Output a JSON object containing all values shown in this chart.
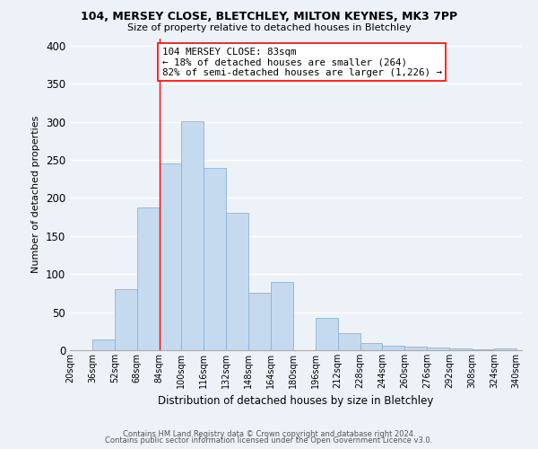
{
  "title_line1": "104, MERSEY CLOSE, BLETCHLEY, MILTON KEYNES, MK3 7PP",
  "title_line2": "Size of property relative to detached houses in Bletchley",
  "xlabel": "Distribution of detached houses by size in Bletchley",
  "ylabel": "Number of detached properties",
  "bin_labels": [
    "20sqm",
    "36sqm",
    "52sqm",
    "68sqm",
    "84sqm",
    "100sqm",
    "116sqm",
    "132sqm",
    "148sqm",
    "164sqm",
    "180sqm",
    "196sqm",
    "212sqm",
    "228sqm",
    "244sqm",
    "260sqm",
    "276sqm",
    "292sqm",
    "308sqm",
    "324sqm",
    "340sqm"
  ],
  "bin_edges": [
    20,
    36,
    52,
    68,
    84,
    100,
    116,
    132,
    148,
    164,
    180,
    196,
    212,
    228,
    244,
    260,
    276,
    292,
    308,
    324,
    340
  ],
  "bar_heights": [
    0,
    14,
    80,
    188,
    245,
    301,
    239,
    181,
    75,
    90,
    0,
    42,
    22,
    10,
    6,
    5,
    3,
    2,
    1,
    2,
    0
  ],
  "bar_color": "#c5d9ef",
  "bar_edgecolor": "#8ab4d8",
  "property_line_x": 84,
  "annotation_box_text": "104 MERSEY CLOSE: 83sqm\n← 18% of detached houses are smaller (264)\n82% of semi-detached houses are larger (1,226) →",
  "ylim": [
    0,
    410
  ],
  "xlim": [
    20,
    344
  ],
  "yticks": [
    0,
    50,
    100,
    150,
    200,
    250,
    300,
    350,
    400
  ],
  "footer_line1": "Contains HM Land Registry data © Crown copyright and database right 2024.",
  "footer_line2": "Contains public sector information licensed under the Open Government Licence v3.0.",
  "bg_color": "#edf2f9"
}
